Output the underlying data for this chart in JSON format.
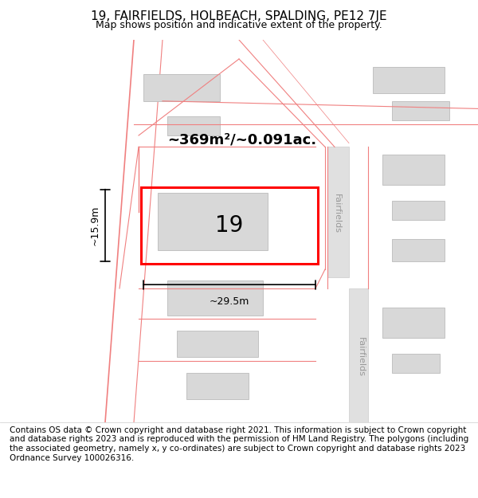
{
  "title": "19, FAIRFIELDS, HOLBEACH, SPALDING, PE12 7JE",
  "subtitle": "Map shows position and indicative extent of the property.",
  "area_text": "~369m²/~0.091ac.",
  "width_text": "~29.5m",
  "height_text": "~15.9m",
  "label_19": "19",
  "footer": "Contains OS data © Crown copyright and database right 2021. This information is subject to Crown copyright and database rights 2023 and is reproduced with the permission of HM Land Registry. The polygons (including the associated geometry, namely x, y co-ordinates) are subject to Crown copyright and database rights 2023 Ordnance Survey 100026316.",
  "bg_color": "#f5f5f5",
  "map_bg": "#ffffff",
  "plot_color": "#ff0000",
  "building_fill": "#d8d8d8",
  "building_edge": "#bbbbbb",
  "road_fill": "#e0e0e0",
  "road_edge": "#cccccc",
  "pink_line": "#f08080",
  "road_label_color": "#888888",
  "title_fontsize": 11,
  "subtitle_fontsize": 9,
  "footer_fontsize": 7.5,
  "figsize": [
    6.0,
    6.25
  ],
  "dpi": 100
}
